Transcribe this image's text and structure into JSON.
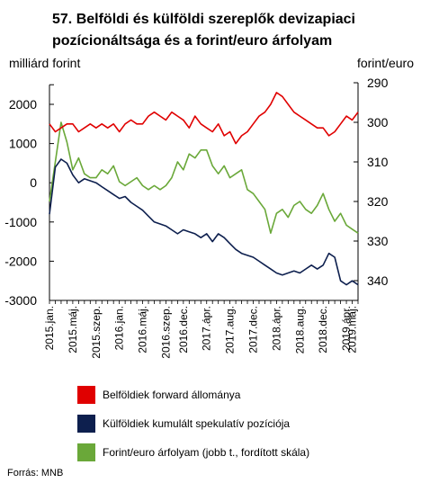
{
  "title": "57. Belföldi és külföldi szereplők devizapiaci pozícionáltsága és a forint/euro árfolyam",
  "left_unit": "milliárd forint",
  "right_unit": "forint/euro",
  "source": "Forrás: MNB",
  "colors": {
    "red": "#e00000",
    "navy": "#0d1f4e",
    "green": "#6aa839",
    "axis": "#000000"
  },
  "chart_data": {
    "type": "line",
    "x_labels": [
      "2015.jan.",
      "2015.máj.",
      "2015.szep.",
      "2016.jan.",
      "2016.máj.",
      "2016.szep.",
      "2016.dec.",
      "2017.ápr.",
      "2017.aug.",
      "2017.dec.",
      "2018.ápr.",
      "2018.aug.",
      "2018.dec.",
      "2019.ápr.",
      "2019.máj."
    ],
    "x_label_index": [
      0,
      4,
      8,
      12,
      16,
      20,
      23,
      27,
      31,
      35,
      39,
      43,
      47,
      51,
      52
    ],
    "n_months": 54,
    "left_axis": {
      "min": -3000,
      "max": 2000,
      "ticks": [
        2000,
        1000,
        0,
        -1000,
        -2000,
        -3000
      ],
      "extend_top": 2500
    },
    "right_axis": {
      "min": 290,
      "max": 340,
      "ticks": [
        290,
        300,
        310,
        320,
        330,
        340
      ],
      "inverted": true
    },
    "series": [
      {
        "name": "Belföldiek forward állománya",
        "axis": "left",
        "color": "red",
        "values": [
          1500,
          1300,
          1400,
          1500,
          1500,
          1300,
          1400,
          1500,
          1400,
          1500,
          1400,
          1500,
          1300,
          1500,
          1600,
          1500,
          1500,
          1700,
          1800,
          1700,
          1600,
          1800,
          1700,
          1600,
          1400,
          1700,
          1500,
          1400,
          1300,
          1500,
          1200,
          1300,
          1000,
          1200,
          1300,
          1500,
          1700,
          1800,
          2000,
          2300,
          2200,
          2000,
          1800,
          1700,
          1600,
          1500,
          1400,
          1400,
          1200,
          1300,
          1500,
          1700,
          1600,
          1800
        ]
      },
      {
        "name": "Külföldiek kumulált spekulatív pozíciója",
        "axis": "left",
        "color": "navy",
        "values": [
          -800,
          400,
          600,
          500,
          200,
          0,
          100,
          50,
          0,
          -100,
          -200,
          -300,
          -400,
          -350,
          -500,
          -600,
          -700,
          -850,
          -1000,
          -1050,
          -1100,
          -1200,
          -1300,
          -1200,
          -1250,
          -1300,
          -1400,
          -1300,
          -1500,
          -1300,
          -1400,
          -1550,
          -1700,
          -1800,
          -1850,
          -1900,
          -2000,
          -2100,
          -2200,
          -2300,
          -2350,
          -2300,
          -2250,
          -2300,
          -2200,
          -2100,
          -2200,
          -2100,
          -1800,
          -1900,
          -2500,
          -2600,
          -2500,
          -2600
        ]
      },
      {
        "name": "Forint/euro árfolyam (jobb t., fordított skála)",
        "axis": "right",
        "color": "green",
        "values": [
          320,
          310,
          300,
          305,
          312,
          309,
          313,
          314,
          314,
          312,
          313,
          311,
          315,
          316,
          315,
          314,
          316,
          317,
          316,
          317,
          316,
          314,
          310,
          312,
          308,
          309,
          307,
          307,
          311,
          313,
          311,
          314,
          313,
          312,
          317,
          318,
          320,
          322,
          328,
          323,
          322,
          324,
          321,
          320,
          322,
          323,
          321,
          318,
          322,
          325,
          323,
          326,
          327,
          328
        ]
      }
    ]
  }
}
